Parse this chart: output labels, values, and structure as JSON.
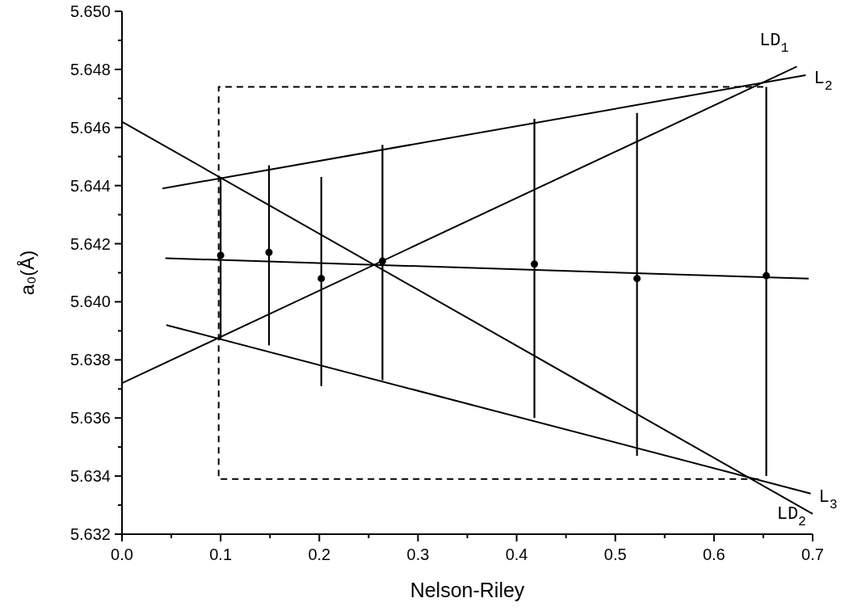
{
  "chart_data": {
    "type": "scatter",
    "xlabel": "Nelson-Riley",
    "ylabel": "a₀(Å)",
    "xlim": [
      0,
      0.7
    ],
    "ylim": [
      5.632,
      5.65
    ],
    "xticks": [
      {
        "value": 0,
        "label": "0.0"
      },
      {
        "value": 0.05,
        "label": null
      },
      0.1,
      {
        "value": 0.15,
        "label": null
      },
      0.2,
      {
        "value": 0.25,
        "label": null
      },
      0.3,
      {
        "value": 0.35,
        "label": null
      },
      0.4,
      {
        "value": 0.45,
        "label": null
      },
      0.5,
      {
        "value": 0.55,
        "label": null
      },
      0.6,
      {
        "value": 0.65,
        "label": null
      },
      0.7
    ],
    "yticks": [
      5.632,
      {
        "value": 5.633,
        "label": null
      },
      5.634,
      {
        "value": 5.635,
        "label": null
      },
      5.636,
      {
        "value": 5.637,
        "label": null
      },
      5.638,
      {
        "value": 5.639,
        "label": null
      },
      {
        "value": 5.64,
        "label": "5.640"
      },
      {
        "value": 5.641,
        "label": null
      },
      5.642,
      {
        "value": 5.643,
        "label": null
      },
      5.644,
      {
        "value": 5.645,
        "label": null
      },
      5.646,
      {
        "value": 5.647,
        "label": null
      },
      5.648,
      {
        "value": 5.649,
        "label": null
      },
      {
        "value": 5.65,
        "label": "5.650"
      }
    ],
    "grid": false,
    "legend": false,
    "series": [
      {
        "type": "line",
        "color": "#000000",
        "marker": "none",
        "line_style": "solid",
        "x": [
          0.044,
          0.696
        ],
        "values": [
          5.6415,
          5.6408
        ]
      },
      {
        "type": "line",
        "name": "L$_{2}$",
        "color": "#000000",
        "marker": "none",
        "line_style": "solid",
        "x": [
          0.041,
          0.693
        ],
        "values": [
          5.6439,
          5.6478
        ]
      },
      {
        "type": "line",
        "name": "LD$_{1}$",
        "color": "#000000",
        "marker": "none",
        "line_style": "solid",
        "x": [
          0,
          0.684
        ],
        "values": [
          5.6372,
          5.6481
        ]
      },
      {
        "type": "line",
        "name": "LD$_{2}$",
        "color": "#000000",
        "marker": "none",
        "line_style": "solid",
        "x": [
          0,
          0.7
        ],
        "values": [
          5.6462,
          5.6327
        ]
      },
      {
        "type": "line",
        "name": "L$_{3}$",
        "color": "#000000",
        "marker": "none",
        "line_style": "solid",
        "x": [
          0.045,
          0.698
        ],
        "values": [
          5.6392,
          5.6334
        ]
      },
      {
        "type": "line",
        "color": "#000000",
        "marker": "none",
        "line_style": "dashed",
        "x": [
          0.65,
          0.098,
          0.098,
          0.65
        ],
        "values": [
          5.6474,
          5.6474,
          5.6339,
          5.6339
        ]
      },
      {
        "color": "#000000",
        "marker": "circle",
        "x": [
          0.1,
          0.149,
          0.202,
          0.264,
          0.418,
          0.522,
          0.653
        ],
        "values": [
          5.6416,
          5.6417,
          5.6408,
          5.6414,
          5.6413,
          5.6408,
          5.6409
        ],
        "errors": [
          [
            5.6387,
            5.6443
          ],
          [
            5.6385,
            5.6447
          ],
          [
            5.6371,
            5.6443
          ],
          [
            5.6373,
            5.6454
          ],
          [
            5.636,
            5.6463
          ],
          [
            5.6347,
            5.6465
          ],
          [
            5.634,
            5.6474
          ]
        ]
      }
    ]
  }
}
